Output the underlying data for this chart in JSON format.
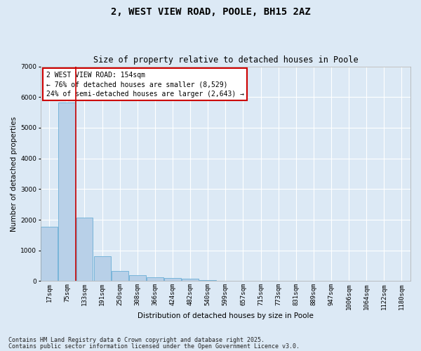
{
  "title": "2, WEST VIEW ROAD, POOLE, BH15 2AZ",
  "subtitle": "Size of property relative to detached houses in Poole",
  "xlabel": "Distribution of detached houses by size in Poole",
  "ylabel": "Number of detached properties",
  "categories": [
    "17sqm",
    "75sqm",
    "133sqm",
    "191sqm",
    "250sqm",
    "308sqm",
    "366sqm",
    "424sqm",
    "482sqm",
    "540sqm",
    "599sqm",
    "657sqm",
    "715sqm",
    "773sqm",
    "831sqm",
    "889sqm",
    "947sqm",
    "1006sqm",
    "1064sqm",
    "1122sqm",
    "1180sqm"
  ],
  "values": [
    1780,
    5820,
    2080,
    820,
    340,
    190,
    120,
    100,
    70,
    40,
    0,
    0,
    0,
    0,
    0,
    0,
    0,
    0,
    0,
    0,
    0
  ],
  "bar_color": "#b8d0e8",
  "bar_edge_color": "#6aaed6",
  "vline_x_index": 1,
  "vline_color": "#cc0000",
  "annotation_title": "2 WEST VIEW ROAD: 154sqm",
  "annotation_line1": "← 76% of detached houses are smaller (8,529)",
  "annotation_line2": "24% of semi-detached houses are larger (2,643) →",
  "annotation_box_color": "#cc0000",
  "ylim": [
    0,
    7000
  ],
  "yticks": [
    0,
    1000,
    2000,
    3000,
    4000,
    5000,
    6000,
    7000
  ],
  "bg_color": "#dce9f5",
  "grid_color": "#ffffff",
  "footer1": "Contains HM Land Registry data © Crown copyright and database right 2025.",
  "footer2": "Contains public sector information licensed under the Open Government Licence v3.0.",
  "title_fontsize": 10,
  "subtitle_fontsize": 8.5,
  "axis_label_fontsize": 7.5,
  "tick_fontsize": 6.5,
  "annotation_fontsize": 7,
  "footer_fontsize": 6
}
